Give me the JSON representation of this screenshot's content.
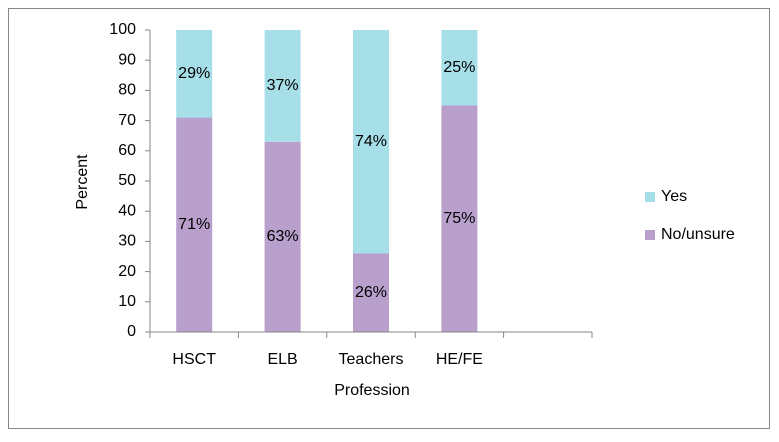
{
  "chart_data": {
    "type": "stacked_bar",
    "categories": [
      "HSCT",
      "ELB",
      "Teachers",
      "HE/FE",
      null
    ],
    "series": [
      {
        "name": "No/unsure",
        "color": "#b9a0cc",
        "values": [
          71,
          63,
          26,
          75,
          null
        ],
        "value_labels": [
          "71%",
          "63%",
          "26%",
          "75%",
          null
        ]
      },
      {
        "name": "Yes",
        "color": "#a6dfe8",
        "values": [
          29,
          37,
          74,
          25,
          null
        ],
        "value_labels": [
          "29%",
          "37%",
          "74%",
          "25%",
          null
        ]
      }
    ],
    "x_label": "Profession",
    "y_label": "Percent",
    "ylim": [
      0,
      100
    ],
    "yticks": [
      0,
      10,
      20,
      30,
      40,
      50,
      60,
      70,
      80,
      90,
      100
    ],
    "legend": "right"
  }
}
